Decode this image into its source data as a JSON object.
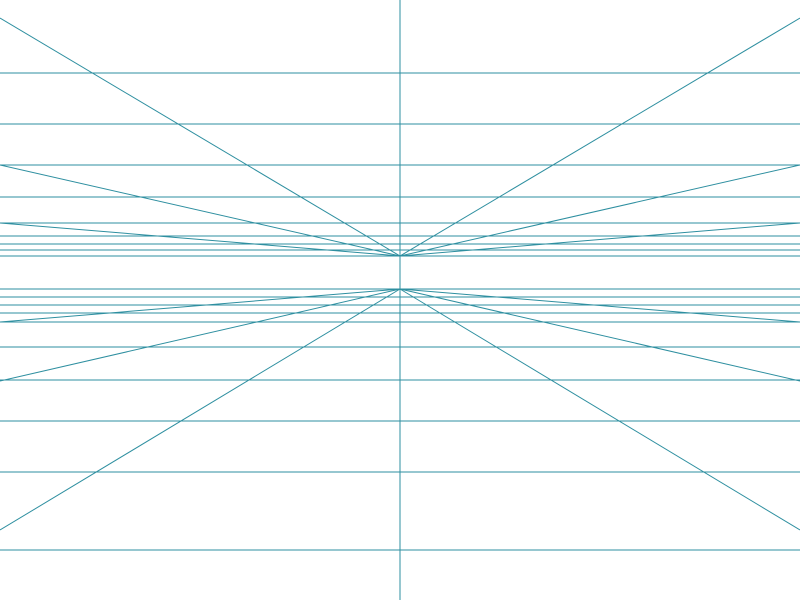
{
  "colors": {
    "background": "#ffffff",
    "line": "#2e8fa0"
  }
}
